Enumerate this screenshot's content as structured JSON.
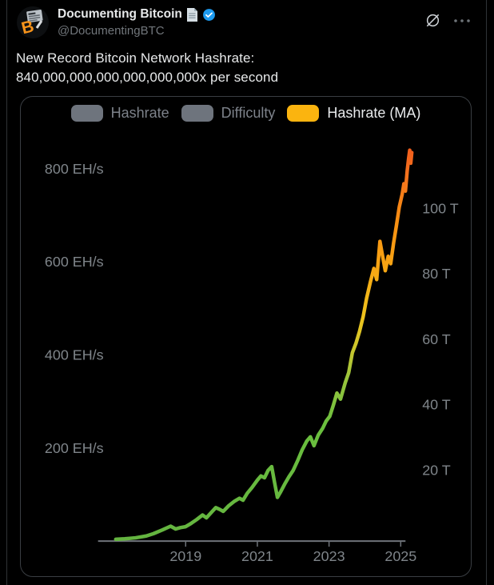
{
  "tweet": {
    "author_name": "Documenting Bitcoin",
    "author_handle": "@DocumentingBTC",
    "text_line1": "New Record Bitcoin Network Hashrate:",
    "text_line2": "840,000,000,000,000,000,000x per second"
  },
  "icons": {
    "header_actions": [
      "grok-icon",
      "more-options-icon"
    ],
    "name_row": [
      "document-page-icon",
      "verified-badge-icon"
    ],
    "avatar": [
      "newspaper-icon",
      "bitcoin-b-logo"
    ]
  },
  "colors": {
    "background": "#000000",
    "divider": "#2f3336",
    "text_primary": "#e7e9ea",
    "text_secondary": "#71767b",
    "axis_text": "#7f858a",
    "axis_line": "#6e7379",
    "verified_blue": "#1d9bf0",
    "bitcoin_orange": "#f7931a",
    "legend_active_yellow": "#fbb40f",
    "legend_inactive_gray": "#6e747d"
  },
  "chart_data": {
    "type": "line",
    "title": "",
    "grid": false,
    "legend_position": "top-center",
    "legend": [
      {
        "label": "Hashrate",
        "swatch_color": "#6e747d",
        "text_color": "#7d828a",
        "active": false
      },
      {
        "label": "Difficulty",
        "swatch_color": "#6e747d",
        "text_color": "#7d828a",
        "active": false
      },
      {
        "label": "Hashrate (MA)",
        "swatch_color": "#fbb40f",
        "text_color": "#e9ebed",
        "active": true
      }
    ],
    "left_axis": {
      "unit": "EH/s",
      "range": [
        0,
        860
      ],
      "ticks": [
        {
          "value": 800,
          "label": "800 EH/s"
        },
        {
          "value": 600,
          "label": "600 EH/s"
        },
        {
          "value": 400,
          "label": "400 EH/s"
        },
        {
          "value": 200,
          "label": "200 EH/s"
        }
      ]
    },
    "right_axis": {
      "unit": "T",
      "range": [
        0,
        115
      ],
      "ticks": [
        {
          "value": 100,
          "label": "100 T"
        },
        {
          "value": 80,
          "label": "80 T"
        },
        {
          "value": 60,
          "label": "60 T"
        },
        {
          "value": 40,
          "label": "40 T"
        },
        {
          "value": 20,
          "label": "20 T"
        }
      ]
    },
    "x_axis": {
      "range": [
        2017.0,
        2025.4
      ],
      "ticks": [
        {
          "value": 2019,
          "label": "2019"
        },
        {
          "value": 2021,
          "label": "2021"
        },
        {
          "value": 2023,
          "label": "2023"
        },
        {
          "value": 2025,
          "label": "2025"
        }
      ]
    },
    "series": [
      {
        "name": "Hashrate (MA)",
        "unit": "EH/s",
        "peak_value": 840,
        "gradient_stops": [
          {
            "value": 840,
            "color": "#f25e1c"
          },
          {
            "value": 790,
            "color": "#f4711d"
          },
          {
            "value": 690,
            "color": "#f78e12"
          },
          {
            "value": 590,
            "color": "#f8a513"
          },
          {
            "value": 480,
            "color": "#eec31d"
          },
          {
            "value": 420,
            "color": "#cfc62b"
          },
          {
            "value": 350,
            "color": "#9ac43c"
          },
          {
            "value": 250,
            "color": "#6abf3e"
          },
          {
            "value": 0,
            "color": "#64b440"
          }
        ],
        "points": [
          [
            2017.05,
            4
          ],
          [
            2017.3,
            5
          ],
          [
            2017.6,
            7
          ],
          [
            2017.9,
            11
          ],
          [
            2018.1,
            16
          ],
          [
            2018.35,
            24
          ],
          [
            2018.58,
            32
          ],
          [
            2018.72,
            26
          ],
          [
            2018.85,
            29
          ],
          [
            2019.0,
            31
          ],
          [
            2019.15,
            38
          ],
          [
            2019.3,
            46
          ],
          [
            2019.47,
            56
          ],
          [
            2019.58,
            50
          ],
          [
            2019.72,
            62
          ],
          [
            2019.84,
            72
          ],
          [
            2019.95,
            68
          ],
          [
            2020.05,
            64
          ],
          [
            2020.2,
            76
          ],
          [
            2020.35,
            85
          ],
          [
            2020.5,
            92
          ],
          [
            2020.6,
            88
          ],
          [
            2020.72,
            103
          ],
          [
            2020.85,
            115
          ],
          [
            2021.0,
            131
          ],
          [
            2021.1,
            140
          ],
          [
            2021.2,
            136
          ],
          [
            2021.3,
            152
          ],
          [
            2021.4,
            160
          ],
          [
            2021.48,
            126
          ],
          [
            2021.56,
            94
          ],
          [
            2021.65,
            106
          ],
          [
            2021.76,
            122
          ],
          [
            2021.88,
            138
          ],
          [
            2022.0,
            152
          ],
          [
            2022.12,
            172
          ],
          [
            2022.25,
            196
          ],
          [
            2022.38,
            215
          ],
          [
            2022.48,
            224
          ],
          [
            2022.58,
            205
          ],
          [
            2022.7,
            228
          ],
          [
            2022.82,
            242
          ],
          [
            2022.92,
            258
          ],
          [
            2023.02,
            268
          ],
          [
            2023.12,
            292
          ],
          [
            2023.22,
            318
          ],
          [
            2023.32,
            305
          ],
          [
            2023.45,
            340
          ],
          [
            2023.55,
            362
          ],
          [
            2023.65,
            405
          ],
          [
            2023.75,
            425
          ],
          [
            2023.85,
            450
          ],
          [
            2023.95,
            482
          ],
          [
            2024.05,
            522
          ],
          [
            2024.15,
            556
          ],
          [
            2024.25,
            586
          ],
          [
            2024.33,
            562
          ],
          [
            2024.42,
            644
          ],
          [
            2024.5,
            610
          ],
          [
            2024.57,
            581
          ],
          [
            2024.65,
            612
          ],
          [
            2024.72,
            596
          ],
          [
            2024.8,
            640
          ],
          [
            2024.88,
            678
          ],
          [
            2024.96,
            718
          ],
          [
            2025.04,
            745
          ],
          [
            2025.09,
            768
          ],
          [
            2025.13,
            752
          ],
          [
            2025.18,
            795
          ],
          [
            2025.22,
            822
          ],
          [
            2025.25,
            840
          ],
          [
            2025.28,
            812
          ],
          [
            2025.31,
            835
          ]
        ]
      }
    ]
  }
}
